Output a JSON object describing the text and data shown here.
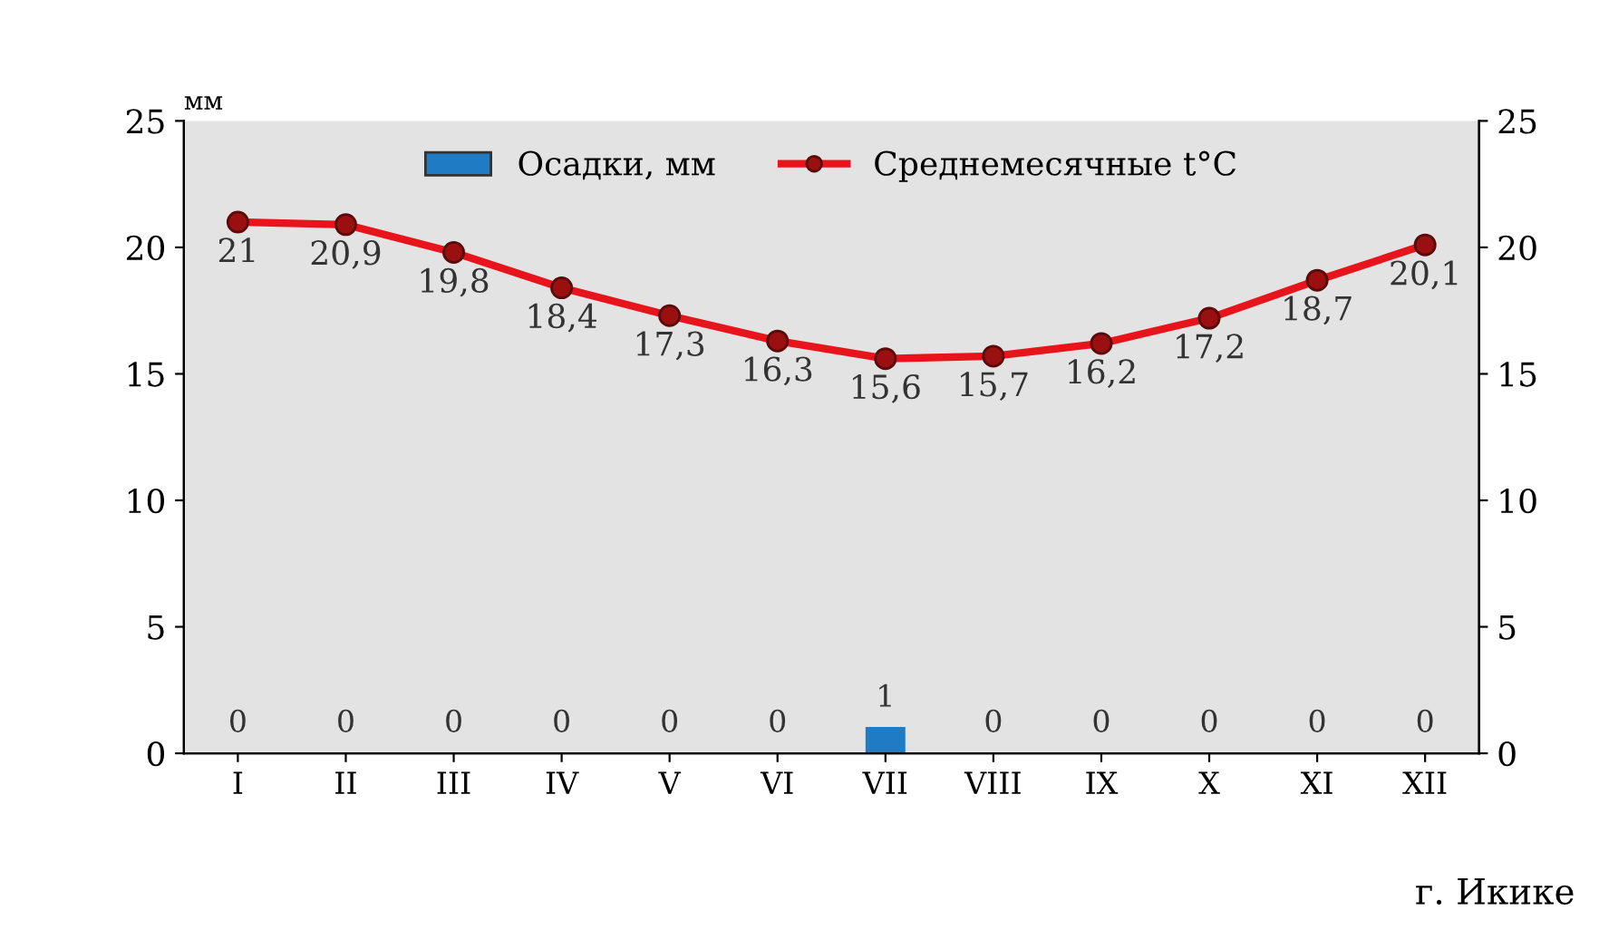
{
  "chart_data": {
    "type": "bar",
    "categories": [
      "I",
      "II",
      "III",
      "IV",
      "V",
      "VI",
      "VII",
      "VIII",
      "IX",
      "X",
      "XI",
      "XII"
    ],
    "ylabel": "мм",
    "series": [
      {
        "name": "Осадки, мм",
        "color": "#1f7cc4",
        "values": [
          0,
          0,
          0,
          0,
          0,
          0,
          1,
          0,
          0,
          0,
          0,
          0
        ],
        "value_labels": [
          "0",
          "0",
          "0",
          "0",
          "0",
          "0",
          "1",
          "0",
          "0",
          "0",
          "0",
          "0"
        ]
      },
      {
        "name": "Среднемесячные t°C",
        "type": "line",
        "axis": "y2",
        "color": "#e8141c",
        "values": [
          21,
          20.9,
          19.8,
          18.4,
          17.3,
          16.3,
          15.6,
          15.7,
          16.2,
          17.2,
          18.7,
          20.1
        ],
        "value_labels": [
          "21",
          "20,9",
          "19,8",
          "18,4",
          "17,3",
          "16,3",
          "15,6",
          "15,7",
          "16,2",
          "17,2",
          "18,7",
          "20,1"
        ]
      }
    ],
    "ylim": [
      0,
      25
    ],
    "yticks": [
      0,
      5,
      10,
      15,
      20,
      25
    ],
    "y2lim": [
      0,
      25
    ],
    "y2ticks": [
      0,
      5,
      10,
      15,
      20,
      25
    ],
    "marker": "circle",
    "line_style": "solid",
    "grid": false,
    "legend": "top",
    "annotations": [
      "г. Икике"
    ]
  }
}
